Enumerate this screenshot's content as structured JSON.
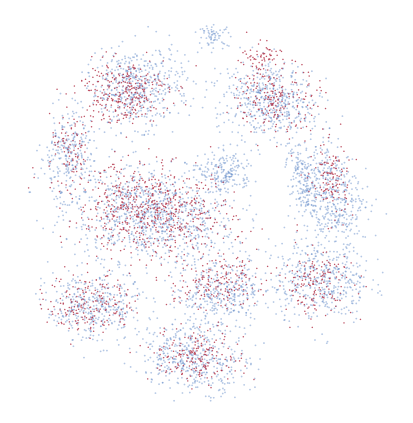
{
  "chart_data": {
    "type": "scatter",
    "title": "",
    "xlabel": "",
    "ylabel": "",
    "axes_visible": false,
    "grid": false,
    "legend": "none",
    "xlim": [
      0,
      100
    ],
    "ylim": [
      0,
      100
    ],
    "series": [
      {
        "color": "#5b85c6",
        "clusters": [
          {
            "x": 36,
            "y": 49,
            "rx": 22,
            "ry": 12,
            "rot": -8,
            "n": 950
          },
          {
            "x": 32,
            "y": 81,
            "rx": 13,
            "ry": 10,
            "rot": 10,
            "n": 520
          },
          {
            "x": 66,
            "y": 78,
            "rx": 12,
            "ry": 10,
            "rot": -20,
            "n": 500
          },
          {
            "x": 82,
            "y": 54,
            "rx": 8,
            "ry": 14,
            "rot": 10,
            "n": 420
          },
          {
            "x": 80,
            "y": 33,
            "rx": 12,
            "ry": 10,
            "rot": -10,
            "n": 420
          },
          {
            "x": 54,
            "y": 29,
            "rx": 14,
            "ry": 8,
            "rot": 15,
            "n": 380
          },
          {
            "x": 21,
            "y": 26,
            "rx": 12,
            "ry": 9,
            "rot": 0,
            "n": 380
          },
          {
            "x": 47,
            "y": 13,
            "rx": 14,
            "ry": 8,
            "rot": -5,
            "n": 420
          },
          {
            "x": 14,
            "y": 64,
            "rx": 7,
            "ry": 10,
            "rot": 0,
            "n": 240
          },
          {
            "x": 52,
            "y": 94,
            "rx": 4,
            "ry": 2.5,
            "rot": 0,
            "n": 60
          },
          {
            "x": 75,
            "y": 58,
            "rx": 4,
            "ry": 10,
            "rot": 15,
            "n": 160
          },
          {
            "x": 55,
            "y": 60,
            "rx": 7,
            "ry": 5,
            "rot": 0,
            "n": 180
          }
        ]
      },
      {
        "color": "#b5394f",
        "clusters": [
          {
            "x": 36,
            "y": 50,
            "rx": 21,
            "ry": 11,
            "rot": -8,
            "n": 620
          },
          {
            "x": 28,
            "y": 80,
            "rx": 12,
            "ry": 8,
            "rot": 5,
            "n": 300
          },
          {
            "x": 68,
            "y": 78,
            "rx": 10,
            "ry": 9,
            "rot": -15,
            "n": 200
          },
          {
            "x": 82,
            "y": 58,
            "rx": 5,
            "ry": 10,
            "rot": 5,
            "n": 120
          },
          {
            "x": 78,
            "y": 32,
            "rx": 10,
            "ry": 8,
            "rot": 0,
            "n": 160
          },
          {
            "x": 52,
            "y": 32,
            "rx": 12,
            "ry": 6,
            "rot": 10,
            "n": 170
          },
          {
            "x": 20,
            "y": 27,
            "rx": 11,
            "ry": 8,
            "rot": 0,
            "n": 200
          },
          {
            "x": 48,
            "y": 14,
            "rx": 12,
            "ry": 7,
            "rot": 0,
            "n": 190
          },
          {
            "x": 15,
            "y": 65,
            "rx": 5,
            "ry": 8,
            "rot": 0,
            "n": 80
          },
          {
            "x": 64,
            "y": 88,
            "rx": 5,
            "ry": 4,
            "rot": 0,
            "n": 60
          }
        ]
      }
    ]
  }
}
